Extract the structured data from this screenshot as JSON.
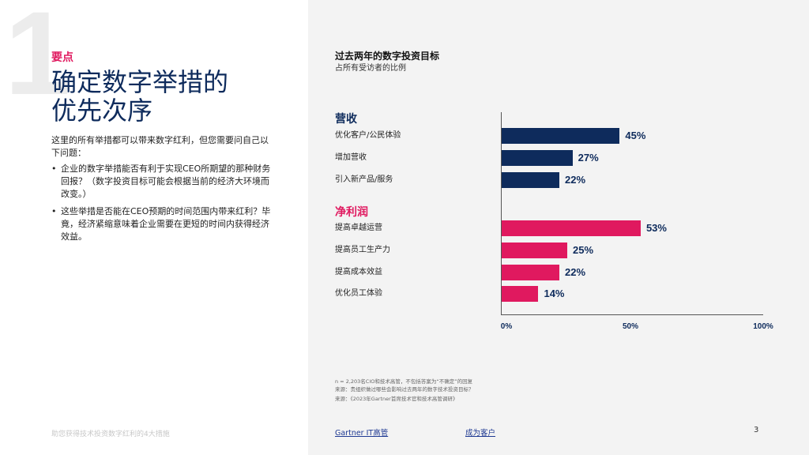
{
  "left": {
    "big_number": "1",
    "eyebrow": "要点",
    "title_line1": "确定数字举措的",
    "title_line2": "优先次序",
    "intro": "这里的所有举措都可以带来数字红利，但您需要问自己以下问题：",
    "bullets": [
      "企业的数字举措能否有利于实现CEO所期望的那种财务回报？（数字投资目标可能会根据当前的经济大环境而改变。）",
      "这些举措是否能在CEO预期的时间范围内带来红利？毕竟，经济紧缩意味着企业需要在更短的时间内获得经济效益。"
    ],
    "footer": "助您获得技术投资数字红利的4大措施"
  },
  "chart_data": {
    "type": "bar",
    "orientation": "horizontal",
    "title": "过去两年的数字投资目标",
    "subtitle": "占所有受访者的比例",
    "xlim": [
      0,
      100
    ],
    "x_ticks": [
      "0%",
      "50%",
      "100%"
    ],
    "groups": [
      {
        "name": "营收",
        "color": "#0e2b5c",
        "categories": [
          "优化客户/公民体验",
          "增加营收",
          "引入新产品/服务"
        ],
        "values": [
          45,
          27,
          22
        ],
        "labels": [
          "45%",
          "27%",
          "22%"
        ]
      },
      {
        "name": "净利润",
        "color": "#e0195f",
        "categories": [
          "提高卓越运营",
          "提高员工生产力",
          "提高成本效益",
          "优化员工体验"
        ],
        "values": [
          53,
          25,
          22,
          14
        ],
        "labels": [
          "53%",
          "25%",
          "22%",
          "14%"
        ]
      }
    ]
  },
  "notes": [
    "n = 2,203名CIO和技术高管，不包括答案为“不确定”的回复",
    "来源：贵组织做过哪些会影响过去两年的数字技术投资目标？",
    "来源：《2023年Gartner首席技术官和技术高管调研》"
  ],
  "footer": {
    "link1": "Gartner IT高管",
    "link2": "成为客户",
    "page": "3"
  }
}
